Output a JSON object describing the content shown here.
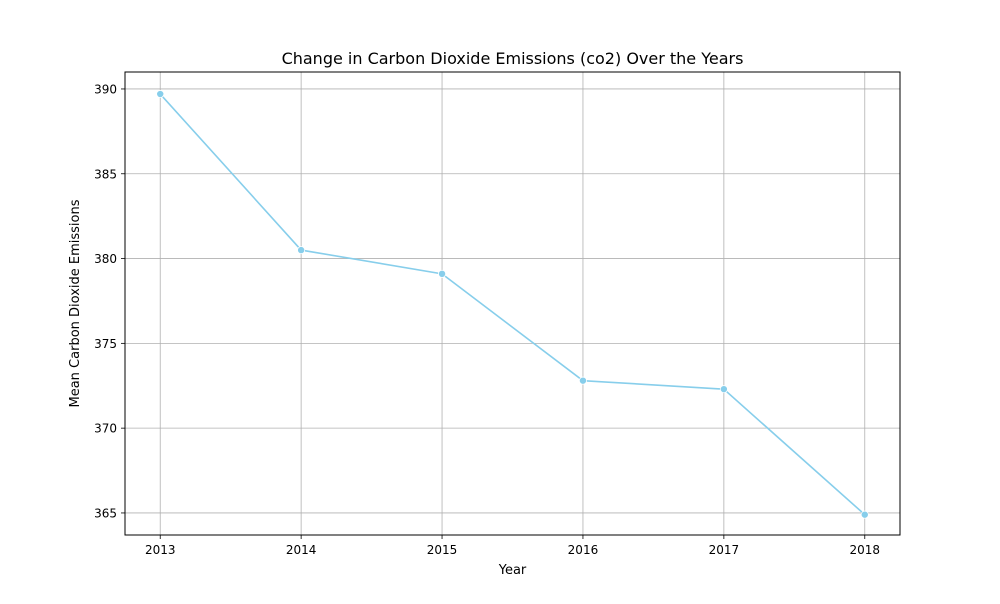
{
  "chart_data": {
    "type": "line",
    "title": "Change in Carbon Dioxide Emissions (co2) Over the Years",
    "xlabel": "Year",
    "ylabel": "Mean Carbon Dioxide Emissions",
    "x": [
      2013,
      2014,
      2015,
      2016,
      2017,
      2018
    ],
    "xticks": [
      "2013",
      "2014",
      "2015",
      "2016",
      "2017",
      "2018"
    ],
    "series": [
      {
        "values": [
          389.7,
          380.5,
          379.1,
          372.8,
          372.3,
          364.9
        ],
        "color": "#87ceeb"
      }
    ],
    "xlim": [
      2012.75,
      2018.25
    ],
    "ylim": [
      363.7,
      391.0
    ],
    "yticks": [
      365,
      370,
      375,
      380,
      385,
      390
    ],
    "ytick_labels": [
      "365",
      "370",
      "375",
      "380",
      "385",
      "390"
    ],
    "grid": true,
    "marker": "circle"
  }
}
